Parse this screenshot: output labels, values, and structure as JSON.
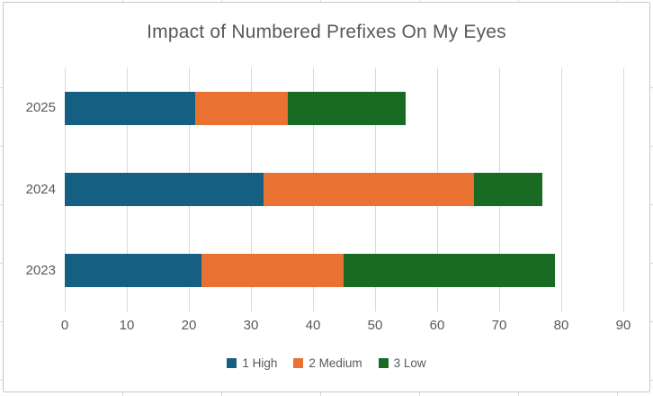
{
  "chart_data": {
    "type": "bar",
    "orientation": "horizontal",
    "stacked": true,
    "title": "Impact of Numbered Prefixes On My Eyes",
    "categories_top_to_bottom": [
      "2025",
      "2024",
      "2023"
    ],
    "series": [
      {
        "name": "1 High",
        "color": "#156082",
        "values": [
          21,
          32,
          22
        ]
      },
      {
        "name": "2 Medium",
        "color": "#E97132",
        "values": [
          15,
          34,
          23
        ]
      },
      {
        "name": "3 Low",
        "color": "#196B24",
        "values": [
          19,
          11,
          34
        ]
      }
    ],
    "totals_top_to_bottom": [
      55,
      77,
      79
    ],
    "x_axis": {
      "min": 0,
      "max": 90,
      "tick_step": 10,
      "tick_labels": [
        "0",
        "10",
        "20",
        "30",
        "40",
        "50",
        "60",
        "70",
        "80",
        "90"
      ]
    },
    "legend": {
      "position": "bottom",
      "entries": [
        "1 High",
        "2 Medium",
        "3 Low"
      ]
    },
    "grid": true,
    "style": {
      "text_color": "#595959",
      "gridline_color": "#d9d9d9",
      "chart_border_color": "#c7c7c7",
      "background_color": "#ffffff"
    }
  }
}
